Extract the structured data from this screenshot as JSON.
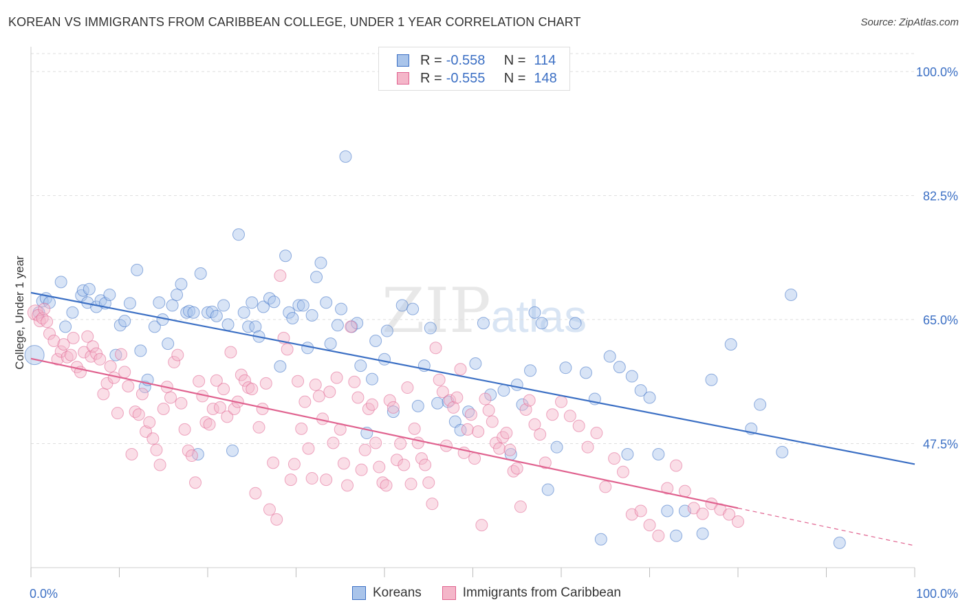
{
  "title": "KOREAN VS IMMIGRANTS FROM CARIBBEAN COLLEGE, UNDER 1 YEAR CORRELATION CHART",
  "source": "Source: ZipAtlas.com",
  "watermark": {
    "zip": "ZIP",
    "atlas": "atlas"
  },
  "colors": {
    "blue": "#3b6fc4",
    "blue_fill": "#a9c4ea",
    "pink": "#e0628f",
    "pink_fill": "#f4b6c9"
  },
  "legend_top": [
    {
      "r_label": "R =",
      "r_value": "-0.558",
      "n_label": "N =",
      "n_value": "114"
    },
    {
      "r_label": "R =",
      "r_value": "-0.555",
      "n_label": "N =",
      "n_value": "148"
    }
  ],
  "legend_bottom": [
    "Koreans",
    "Immigrants from Caribbean"
  ],
  "chart_data": {
    "type": "scatter",
    "title": "KOREAN VS IMMIGRANTS FROM CARIBBEAN COLLEGE, UNDER 1 YEAR CORRELATION CHART",
    "xlabel": "",
    "ylabel": "College, Under 1 year",
    "xlim": [
      0,
      100
    ],
    "ylim": [
      30.0,
      103.5
    ],
    "x_tick_labels": [
      "0.0%",
      "100.0%"
    ],
    "y_tick_labels": [
      "100.0%",
      "82.5%",
      "65.0%",
      "47.5%"
    ],
    "y_ticks": [
      100.0,
      82.5,
      65.0,
      47.5
    ],
    "grid": "horizontal dashed",
    "legend": "bottom",
    "series": [
      {
        "name": "Koreans",
        "color": "#3b6fc4",
        "trend": {
          "x": [
            0,
            100
          ],
          "y": [
            68.8,
            44.6
          ]
        },
        "points": [
          [
            0.4,
            60
          ],
          [
            0.9,
            66
          ],
          [
            1.3,
            67.6
          ],
          [
            1.7,
            68
          ],
          [
            2.1,
            67.4
          ],
          [
            3.4,
            70.3
          ],
          [
            3.9,
            64
          ],
          [
            4.7,
            66
          ],
          [
            5.7,
            68.4
          ],
          [
            5.9,
            69.1
          ],
          [
            6.4,
            67.4
          ],
          [
            6.6,
            69.3
          ],
          [
            7.4,
            66.8
          ],
          [
            7.9,
            67.7
          ],
          [
            8.4,
            67.3
          ],
          [
            8.9,
            68.5
          ],
          [
            9.6,
            60
          ],
          [
            10.1,
            64.2
          ],
          [
            10.6,
            64.8
          ],
          [
            11.2,
            67.3
          ],
          [
            12.0,
            72
          ],
          [
            12.4,
            60.6
          ],
          [
            12.9,
            55.5
          ],
          [
            13.2,
            56.5
          ],
          [
            14.0,
            64
          ],
          [
            14.5,
            67.4
          ],
          [
            14.9,
            65
          ],
          [
            15.5,
            61.6
          ],
          [
            16.0,
            67
          ],
          [
            16.5,
            68.5
          ],
          [
            17.0,
            70
          ],
          [
            17.6,
            66
          ],
          [
            17.9,
            66.2
          ],
          [
            18.4,
            66
          ],
          [
            18.9,
            46
          ],
          [
            19.2,
            71.5
          ],
          [
            20.0,
            66
          ],
          [
            20.5,
            66.1
          ],
          [
            21.0,
            65.5
          ],
          [
            21.8,
            67
          ],
          [
            22.3,
            64.3
          ],
          [
            22.8,
            46.5
          ],
          [
            23.5,
            77
          ],
          [
            24.1,
            66
          ],
          [
            24.6,
            64
          ],
          [
            25.0,
            67.4
          ],
          [
            25.4,
            64
          ],
          [
            25.8,
            62.6
          ],
          [
            26.3,
            66.8
          ],
          [
            27.0,
            68
          ],
          [
            27.5,
            67.5
          ],
          [
            28.2,
            58.4
          ],
          [
            28.8,
            74
          ],
          [
            29.2,
            66
          ],
          [
            29.6,
            65.2
          ],
          [
            30.3,
            67
          ],
          [
            30.8,
            67
          ],
          [
            31.3,
            61
          ],
          [
            31.8,
            65.6
          ],
          [
            32.3,
            71
          ],
          [
            32.8,
            73
          ],
          [
            33.4,
            67.4
          ],
          [
            33.9,
            61.6
          ],
          [
            34.7,
            64.2
          ],
          [
            35.1,
            66.5
          ],
          [
            35.6,
            88
          ],
          [
            36.3,
            64
          ],
          [
            36.9,
            64.5
          ],
          [
            37.3,
            58.5
          ],
          [
            38.0,
            49
          ],
          [
            38.6,
            56.6
          ],
          [
            39.0,
            62
          ],
          [
            40.0,
            59.4
          ],
          [
            40.3,
            63.4
          ],
          [
            41.0,
            52
          ],
          [
            42.0,
            67
          ],
          [
            43.2,
            66.5
          ],
          [
            43.8,
            52.8
          ],
          [
            44.5,
            58.5
          ],
          [
            45.2,
            63.8
          ],
          [
            46.0,
            53.2
          ],
          [
            47.2,
            53.4
          ],
          [
            48.0,
            50.6
          ],
          [
            48.6,
            49.4
          ],
          [
            49.5,
            52
          ],
          [
            50.3,
            58.8
          ],
          [
            51.2,
            64.5
          ],
          [
            52.0,
            54.4
          ],
          [
            53.5,
            55
          ],
          [
            54.3,
            46
          ],
          [
            55.0,
            55.8
          ],
          [
            55.6,
            53
          ],
          [
            56.5,
            57.8
          ],
          [
            57.0,
            66
          ],
          [
            57.8,
            64.5
          ],
          [
            58.5,
            41
          ],
          [
            59.5,
            47
          ],
          [
            60.5,
            58.2
          ],
          [
            61.6,
            64.5
          ],
          [
            62.8,
            57.5
          ],
          [
            63.8,
            53.8
          ],
          [
            64.5,
            34
          ],
          [
            65.5,
            59.8
          ],
          [
            66.6,
            58.3
          ],
          [
            67.5,
            46
          ],
          [
            68.0,
            57
          ],
          [
            69.0,
            55
          ],
          [
            70.0,
            54
          ],
          [
            71.0,
            46
          ],
          [
            72.0,
            38
          ],
          [
            73.0,
            34.5
          ],
          [
            74.0,
            38
          ],
          [
            76.0,
            34.8
          ],
          [
            77.0,
            56.5
          ],
          [
            79.2,
            61.5
          ],
          [
            81.5,
            49.6
          ],
          [
            82.5,
            53
          ],
          [
            85.0,
            46.3
          ],
          [
            86.0,
            68.5
          ],
          [
            91.5,
            33.5
          ]
        ]
      },
      {
        "name": "Immigrants from Caribbean",
        "color": "#e0628f",
        "trend": {
          "x": [
            0,
            80
          ],
          "y": [
            59.5,
            38.4
          ]
        },
        "trend_dashed": {
          "x": [
            80,
            100
          ],
          "y": [
            38.4,
            33.1
          ]
        },
        "points": [
          [
            0.5,
            66
          ],
          [
            0.8,
            65.6
          ],
          [
            1.0,
            64.8
          ],
          [
            1.3,
            65.2
          ],
          [
            1.5,
            66.5
          ],
          [
            1.8,
            64.7
          ],
          [
            2.1,
            63
          ],
          [
            2.6,
            62
          ],
          [
            3.0,
            59.4
          ],
          [
            3.4,
            60.5
          ],
          [
            3.7,
            61.5
          ],
          [
            4.1,
            59.7
          ],
          [
            4.5,
            60
          ],
          [
            4.8,
            62.4
          ],
          [
            5.2,
            58.3
          ],
          [
            5.6,
            57.6
          ],
          [
            6.0,
            60.4
          ],
          [
            6.4,
            62.6
          ],
          [
            6.8,
            59.8
          ],
          [
            7.0,
            61.2
          ],
          [
            7.4,
            60.2
          ],
          [
            7.8,
            59.4
          ],
          [
            8.2,
            54.5
          ],
          [
            8.6,
            56
          ],
          [
            9.0,
            58.4
          ],
          [
            9.4,
            56.8
          ],
          [
            9.8,
            51.8
          ],
          [
            10.2,
            60.1
          ],
          [
            10.6,
            57.6
          ],
          [
            11.0,
            55.6
          ],
          [
            11.4,
            46
          ],
          [
            11.8,
            52
          ],
          [
            12.2,
            51.6
          ],
          [
            12.6,
            54.5
          ],
          [
            13.0,
            49.2
          ],
          [
            13.4,
            50.5
          ],
          [
            13.8,
            48.2
          ],
          [
            14.2,
            46.6
          ],
          [
            14.6,
            44.5
          ],
          [
            15.0,
            52.4
          ],
          [
            15.4,
            55.5
          ],
          [
            15.8,
            54
          ],
          [
            16.2,
            59
          ],
          [
            16.6,
            60
          ],
          [
            17.0,
            53.2
          ],
          [
            17.4,
            49.5
          ],
          [
            17.8,
            46.5
          ],
          [
            18.2,
            45.8
          ],
          [
            18.6,
            42
          ],
          [
            19.0,
            56.3
          ],
          [
            19.4,
            54.2
          ],
          [
            19.8,
            50.5
          ],
          [
            20.2,
            50.2
          ],
          [
            20.6,
            52.4
          ],
          [
            21.0,
            56.4
          ],
          [
            21.4,
            52.6
          ],
          [
            21.8,
            55.2
          ],
          [
            22.2,
            51.3
          ],
          [
            22.6,
            60.4
          ],
          [
            23.0,
            52.4
          ],
          [
            23.4,
            53.4
          ],
          [
            23.8,
            57.2
          ],
          [
            24.2,
            56.4
          ],
          [
            24.6,
            55.4
          ],
          [
            25.0,
            55.2
          ],
          [
            25.4,
            40.5
          ],
          [
            25.8,
            49.8
          ],
          [
            26.2,
            52.4
          ],
          [
            26.6,
            56
          ],
          [
            27.0,
            38.2
          ],
          [
            27.4,
            44.8
          ],
          [
            27.8,
            36.8
          ],
          [
            28.2,
            71.2
          ],
          [
            28.6,
            62.4
          ],
          [
            29.0,
            60.8
          ],
          [
            29.4,
            42.4
          ],
          [
            29.8,
            44.6
          ],
          [
            30.2,
            56.3
          ],
          [
            30.6,
            49.6
          ],
          [
            31.0,
            53.4
          ],
          [
            31.4,
            46.8
          ],
          [
            31.8,
            42.6
          ],
          [
            32.2,
            55.8
          ],
          [
            32.6,
            54.2
          ],
          [
            33.0,
            51
          ],
          [
            33.4,
            42.4
          ],
          [
            33.8,
            54.8
          ],
          [
            34.2,
            47.6
          ],
          [
            34.6,
            56.8
          ],
          [
            35.0,
            49.5
          ],
          [
            35.4,
            44.7
          ],
          [
            35.8,
            41.6
          ],
          [
            36.2,
            64
          ],
          [
            36.6,
            56.2
          ],
          [
            37.0,
            54
          ],
          [
            37.4,
            43.8
          ],
          [
            37.8,
            46.6
          ],
          [
            38.2,
            52.4
          ],
          [
            38.6,
            53
          ],
          [
            39.0,
            47.6
          ],
          [
            39.4,
            44.2
          ],
          [
            39.8,
            42
          ],
          [
            40.2,
            41.6
          ],
          [
            40.6,
            53.6
          ],
          [
            41.0,
            52.6
          ],
          [
            41.4,
            45.2
          ],
          [
            41.8,
            47.5
          ],
          [
            42.2,
            44.5
          ],
          [
            42.6,
            55.4
          ],
          [
            43.0,
            41.8
          ],
          [
            43.4,
            49.6
          ],
          [
            43.8,
            47.6
          ],
          [
            44.2,
            45.4
          ],
          [
            44.6,
            44.5
          ],
          [
            45.0,
            42
          ],
          [
            45.4,
            39
          ],
          [
            45.8,
            61
          ],
          [
            46.2,
            56.5
          ],
          [
            46.6,
            54.8
          ],
          [
            47.0,
            47.2
          ],
          [
            47.4,
            53.6
          ],
          [
            47.8,
            52.6
          ],
          [
            48.2,
            54
          ],
          [
            48.6,
            58
          ],
          [
            49.0,
            46.2
          ],
          [
            49.4,
            49.5
          ],
          [
            49.8,
            51.6
          ],
          [
            50.2,
            45.4
          ],
          [
            50.6,
            49.2
          ],
          [
            51.0,
            36
          ],
          [
            51.4,
            53.8
          ],
          [
            51.8,
            52.2
          ],
          [
            52.2,
            50.6
          ],
          [
            52.6,
            47.6
          ],
          [
            53.0,
            46.8
          ],
          [
            53.4,
            48.4
          ],
          [
            53.8,
            49
          ],
          [
            54.2,
            46.6
          ],
          [
            54.6,
            43.6
          ],
          [
            55.0,
            44
          ],
          [
            55.4,
            38.6
          ],
          [
            56.0,
            52.3
          ],
          [
            56.4,
            53.6
          ],
          [
            57.0,
            50.2
          ],
          [
            57.6,
            48.8
          ],
          [
            58.2,
            44.8
          ],
          [
            59.0,
            51.6
          ],
          [
            60.0,
            53.4
          ],
          [
            61.0,
            51.4
          ],
          [
            62.0,
            50
          ],
          [
            63.0,
            47
          ],
          [
            64.0,
            49
          ],
          [
            65.0,
            41.4
          ],
          [
            66.0,
            45.4
          ],
          [
            67.0,
            43.5
          ],
          [
            68.0,
            37.5
          ],
          [
            69.0,
            38
          ],
          [
            70.0,
            36
          ],
          [
            71.0,
            34.5
          ],
          [
            72.0,
            41.2
          ],
          [
            73.0,
            44.4
          ],
          [
            74.0,
            40.8
          ],
          [
            75.0,
            38.4
          ],
          [
            76.0,
            37.6
          ],
          [
            77.0,
            39
          ],
          [
            78.0,
            38.2
          ],
          [
            79.0,
            37.5
          ],
          [
            80.0,
            36.5
          ]
        ]
      }
    ]
  }
}
